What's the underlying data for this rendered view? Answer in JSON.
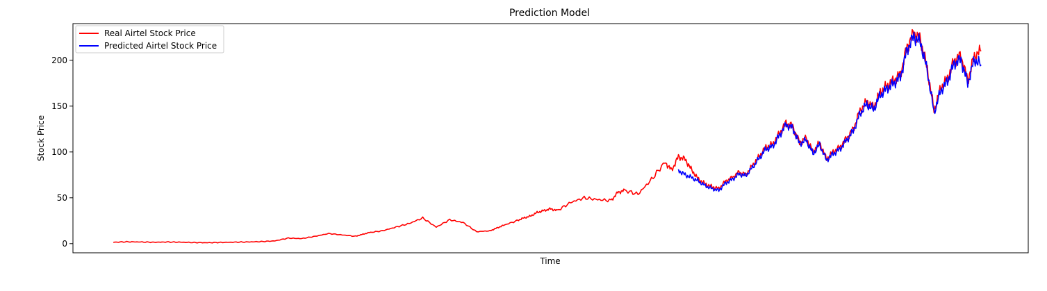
{
  "chart_data": {
    "type": "line",
    "title": "Prediction Model",
    "xlabel": "Time",
    "ylabel": "Stock Price",
    "ylim": [
      -10,
      240
    ],
    "xlim": [
      -20,
      1400
    ],
    "yticks": [
      0,
      50,
      100,
      150,
      200
    ],
    "x_tick_labels_shown": false,
    "grid": false,
    "legend_position": "top-left",
    "series": [
      {
        "name": "Real Airtel Stock Price",
        "color": "#ff0000",
        "x": [
          40,
          60,
          80,
          100,
          120,
          140,
          160,
          180,
          200,
          220,
          240,
          260,
          280,
          300,
          320,
          340,
          360,
          380,
          400,
          410,
          420,
          440,
          460,
          480,
          500,
          520,
          540,
          560,
          580,
          600,
          610,
          620,
          640,
          650,
          660,
          670,
          680,
          690,
          700,
          720,
          740,
          760,
          780,
          790,
          800,
          820,
          840,
          860,
          870,
          880,
          890,
          900,
          910,
          920,
          930,
          940,
          950,
          960,
          970,
          980,
          990,
          1000,
          1010,
          1020,
          1030,
          1040,
          1050,
          1060,
          1070,
          1080,
          1090,
          1100,
          1110,
          1120,
          1130,
          1140,
          1150,
          1160,
          1170,
          1180,
          1190,
          1200,
          1210,
          1220,
          1230,
          1240,
          1250,
          1260,
          1270,
          1280,
          1290,
          1300,
          1310,
          1320,
          1330
        ],
        "values": [
          1.5,
          2,
          1.8,
          1.5,
          1.8,
          1.6,
          1.2,
          1.0,
          1.3,
          1.6,
          1.8,
          2.2,
          3,
          6,
          5.5,
          8,
          11,
          9.5,
          8,
          10,
          12,
          14,
          18,
          22,
          28,
          18,
          26,
          23,
          13,
          14,
          17,
          20,
          25,
          28,
          30,
          34,
          36,
          38,
          36,
          45,
          50,
          48,
          47,
          56,
          58,
          54,
          70,
          89,
          80,
          95,
          92,
          80,
          70,
          65,
          62,
          60,
          68,
          72,
          78,
          75,
          85,
          95,
          105,
          108,
          120,
          132,
          128,
          110,
          115,
          100,
          110,
          92,
          100,
          105,
          115,
          125,
          145,
          155,
          148,
          165,
          172,
          178,
          185,
          215,
          230,
          222,
          190,
          145,
          170,
          180,
          200,
          205,
          178,
          205,
          210
        ]
      },
      {
        "name": "Predicted Airtel Stock Price",
        "color": "#0000ff",
        "x": [
          880,
          890,
          900,
          910,
          920,
          930,
          940,
          950,
          960,
          970,
          980,
          990,
          1000,
          1010,
          1020,
          1030,
          1040,
          1050,
          1060,
          1070,
          1080,
          1090,
          1100,
          1110,
          1120,
          1130,
          1140,
          1150,
          1160,
          1170,
          1180,
          1190,
          1200,
          1210,
          1220,
          1230,
          1240,
          1250,
          1260,
          1270,
          1280,
          1290,
          1300,
          1310,
          1320,
          1330
        ],
        "values": [
          80,
          75,
          72,
          68,
          63,
          60,
          58,
          66,
          70,
          76,
          74,
          83,
          93,
          103,
          106,
          118,
          130,
          126,
          109,
          113,
          98,
          108,
          91,
          98,
          103,
          113,
          123,
          142,
          152,
          146,
          162,
          169,
          175,
          182,
          212,
          226,
          219,
          188,
          143,
          167,
          177,
          197,
          201,
          175,
          201,
          195
        ]
      }
    ]
  }
}
